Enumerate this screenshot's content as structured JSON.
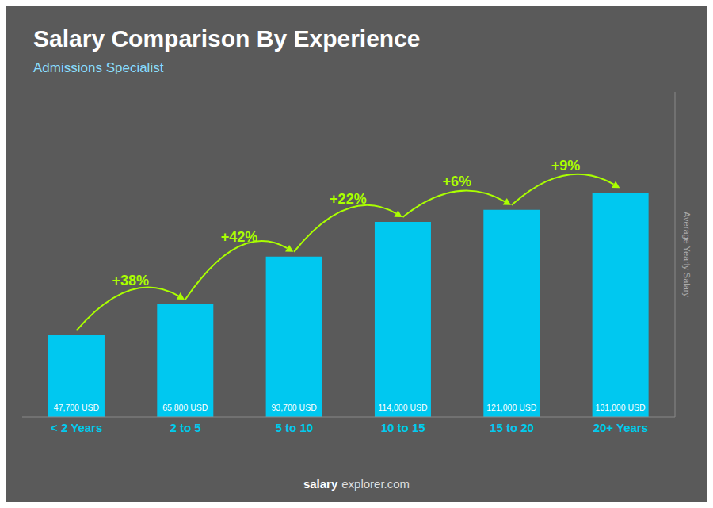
{
  "chart_data": {
    "type": "bar",
    "title": "Salary Comparison By Experience",
    "subtitle": "Admissions Specialist",
    "ylabel": "Average Yearly Salary",
    "categories": [
      "< 2 Years",
      "2 to 5",
      "5 to 10",
      "10 to 15",
      "15 to 20",
      "20+ Years"
    ],
    "values": [
      47700,
      65800,
      93700,
      114000,
      121000,
      131000
    ],
    "value_labels": [
      "47,700 USD",
      "65,800 USD",
      "93,700 USD",
      "114,000 USD",
      "121,000 USD",
      "131,000 USD"
    ],
    "data_labels": true,
    "color": "#00c8f0",
    "ylim": [
      0,
      189950
    ],
    "yticks": [],
    "tick_labels": "x",
    "grid": false,
    "annotations": [
      {
        "text": "+38%",
        "color": "#aaff00"
      },
      {
        "text": "+42%",
        "color": "#aaff00"
      },
      {
        "text": "+22%",
        "color": "#aaff00"
      },
      {
        "text": "+6%",
        "color": "#aaff00"
      },
      {
        "text": "+9%",
        "color": "#aaff00"
      }
    ],
    "watermark": [
      "salary",
      "explorer.com"
    ]
  }
}
